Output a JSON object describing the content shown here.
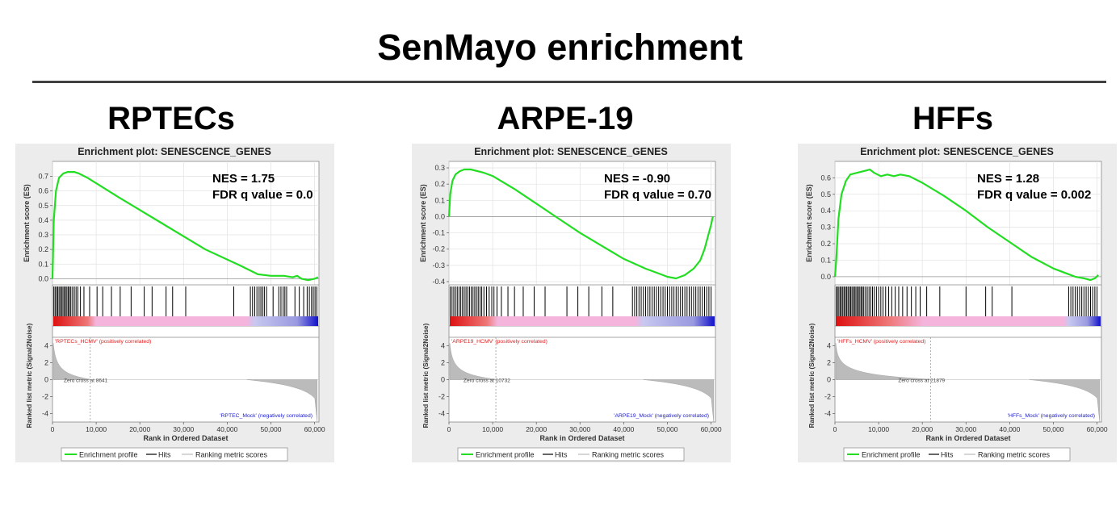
{
  "page": {
    "title": "SenMayo enrichment"
  },
  "chart_data": [
    {
      "type": "line",
      "cell_title": "RPTECs",
      "title": "Enrichment plot: SENESCENCE_GENES",
      "nes_label": "NES = 1.75",
      "fdr_label": "FDR q value = 0.0",
      "ylabel": "Enrichment score (ES)",
      "ylim": [
        -0.02,
        0.78
      ],
      "yticks": [
        0.0,
        0.1,
        0.2,
        0.3,
        0.4,
        0.5,
        0.6,
        0.7
      ],
      "ytick_labels": [
        "0.0",
        "0.1",
        "0.2",
        "0.3",
        "0.4",
        "0.5",
        "0.6",
        "0.7"
      ],
      "xlabel": "Rank in Ordered Dataset",
      "xlim": [
        0,
        61000
      ],
      "xticks": [
        0,
        10000,
        20000,
        30000,
        40000,
        50000,
        60000
      ],
      "xtick_labels": [
        "0",
        "10,000",
        "20,000",
        "30,000",
        "40,000",
        "50,000",
        "60,000"
      ],
      "series": [
        {
          "name": "Enrichment profile",
          "color": "#22dd22",
          "x": [
            0,
            300,
            800,
            1500,
            2500,
            3500,
            5000,
            6000,
            8000,
            15000,
            25000,
            35000,
            43000,
            47000,
            50000,
            53000,
            55000,
            56000,
            57000,
            58500,
            60000,
            60800
          ],
          "values": [
            0,
            0.4,
            0.6,
            0.69,
            0.72,
            0.73,
            0.73,
            0.72,
            0.69,
            0.56,
            0.38,
            0.2,
            0.09,
            0.03,
            0.02,
            0.02,
            0.01,
            0.02,
            0.0,
            -0.01,
            0.0,
            0.01
          ]
        }
      ],
      "hits": [
        300,
        600,
        900,
        1200,
        1500,
        1800,
        2100,
        2400,
        2700,
        3000,
        3300,
        3600,
        3900,
        4200,
        4600,
        5000,
        5400,
        5800,
        6400,
        7200,
        8500,
        10200,
        11500,
        13500,
        15500,
        18000,
        21000,
        22800,
        26000,
        27500,
        30500,
        41500,
        45300,
        45800,
        46300,
        46800,
        47300,
        47700,
        48100,
        48500,
        49000,
        50500,
        51800,
        52300,
        52800,
        53200,
        53600,
        55500,
        56500,
        57500,
        58300,
        58800,
        59300,
        59700,
        60100,
        60500
      ],
      "gradient": [
        {
          "offset": 0,
          "color": "#dd1111"
        },
        {
          "offset": 0.13,
          "color": "#ee7777"
        },
        {
          "offset": 0.16,
          "color": "#f4b4dc"
        },
        {
          "offset": 0.73,
          "color": "#f4b4dc"
        },
        {
          "offset": 0.76,
          "color": "#c8c8f0"
        },
        {
          "offset": 0.92,
          "color": "#9999e0"
        },
        {
          "offset": 1,
          "color": "#1111cc"
        }
      ],
      "pos_label": "'RPTECs_HCMV' (positively correlated)",
      "neg_label": "'RPTEC_Mock' (negatively correlated)",
      "zero_cross_label": "Zero cross at 8641",
      "zero_cross": 8641,
      "metric_ylabel": "Ranked list metric (Signal2Noise)",
      "metric_ylim": [
        -5,
        5
      ],
      "metric_yticks": [
        4,
        2,
        0,
        -2,
        -4
      ],
      "metric_ytick_labels": [
        "4",
        "2",
        "0",
        "-2",
        "-4"
      ],
      "legend": [
        "Enrichment profile",
        "Hits",
        "Ranking metric scores"
      ],
      "hits_color": "#000000",
      "metric_color": "#bbbbbb"
    },
    {
      "type": "line",
      "cell_title": "ARPE-19",
      "title": "Enrichment plot: SENESCENCE_GENES",
      "nes_label": "NES = -0.90",
      "fdr_label": "FDR q value = 0.70",
      "ylabel": "Enrichment score (ES)",
      "ylim": [
        -0.4,
        0.32
      ],
      "yticks": [
        0.3,
        0.2,
        0.1,
        0.0,
        -0.1,
        -0.2,
        -0.3,
        -0.4
      ],
      "ytick_labels": [
        "0.3",
        "0.2",
        "0.1",
        "0.0",
        "-0.1",
        "-0.2",
        "-0.3",
        "-0.4"
      ],
      "xlabel": "Rank in Ordered Dataset",
      "xlim": [
        0,
        61000
      ],
      "xticks": [
        0,
        10000,
        20000,
        30000,
        40000,
        50000,
        60000
      ],
      "xtick_labels": [
        "0",
        "10,000",
        "20,000",
        "30,000",
        "40,000",
        "50,000",
        "60,000"
      ],
      "series": [
        {
          "name": "Enrichment profile",
          "color": "#22dd22",
          "x": [
            0,
            300,
            800,
            1500,
            2500,
            3500,
            5000,
            8000,
            10000,
            15000,
            20000,
            25000,
            30000,
            35000,
            40000,
            45000,
            48000,
            50000,
            52000,
            54000,
            56000,
            57500,
            58500,
            59300,
            60000,
            60400
          ],
          "values": [
            0,
            0.14,
            0.22,
            0.26,
            0.28,
            0.29,
            0.29,
            0.27,
            0.25,
            0.17,
            0.08,
            -0.01,
            -0.1,
            -0.18,
            -0.26,
            -0.32,
            -0.35,
            -0.37,
            -0.38,
            -0.36,
            -0.32,
            -0.27,
            -0.2,
            -0.12,
            -0.05,
            0.0
          ]
        }
      ],
      "hits": [
        300,
        700,
        1100,
        1500,
        1900,
        2300,
        2700,
        3100,
        3500,
        3900,
        4300,
        4700,
        5100,
        5500,
        5900,
        6300,
        6700,
        7100,
        7500,
        8000,
        8600,
        9200,
        9800,
        10300,
        11000,
        12000,
        13500,
        15000,
        17000,
        19500,
        22000,
        27000,
        29500,
        32000,
        35000,
        37500,
        42000,
        42500,
        43000,
        43500,
        44000,
        44500,
        45000,
        45500,
        46000,
        46500,
        47000,
        47500,
        48000,
        48500,
        49000,
        49500,
        50000,
        50500,
        51000,
        51500,
        52000,
        52500,
        53000,
        53500,
        54000,
        54500,
        55000,
        55500,
        56000,
        56500,
        57000,
        57500,
        58000,
        58500,
        59000,
        59500,
        60000
      ],
      "gradient": [
        {
          "offset": 0,
          "color": "#dd1111"
        },
        {
          "offset": 0.14,
          "color": "#ee7777"
        },
        {
          "offset": 0.18,
          "color": "#f4b4dc"
        },
        {
          "offset": 0.7,
          "color": "#f4b4dc"
        },
        {
          "offset": 0.73,
          "color": "#c8c8f0"
        },
        {
          "offset": 0.92,
          "color": "#9999e0"
        },
        {
          "offset": 1,
          "color": "#1111cc"
        }
      ],
      "pos_label": "'ARPE19_HCMV' (positively correlated)",
      "neg_label": "'ARPE19_Mock' (negatively correlated)",
      "zero_cross_label": "Zero cross at 10732",
      "zero_cross": 10732,
      "metric_ylabel": "Ranked list metric (Signal2Noise)",
      "metric_ylim": [
        -5,
        5
      ],
      "metric_yticks": [
        4,
        2,
        0,
        -2,
        -4
      ],
      "metric_ytick_labels": [
        "4",
        "2",
        "0",
        "-2",
        "-4"
      ],
      "legend": [
        "Enrichment profile",
        "Hits",
        "Ranking metric scores"
      ],
      "hits_color": "#000000",
      "metric_color": "#bbbbbb"
    },
    {
      "type": "line",
      "cell_title": "HFFs",
      "title": "Enrichment plot: SENESCENCE_GENES",
      "nes_label": "NES = 1.28",
      "fdr_label": "FDR q value = 0.002",
      "ylabel": "Enrichment score (ES)",
      "ylim": [
        -0.03,
        0.68
      ],
      "yticks": [
        0.0,
        0.1,
        0.2,
        0.3,
        0.4,
        0.5,
        0.6
      ],
      "ytick_labels": [
        "0.0",
        "0.1",
        "0.2",
        "0.3",
        "0.4",
        "0.5",
        "0.6"
      ],
      "xlabel": "Rank in Ordered Dataset",
      "xlim": [
        0,
        61000
      ],
      "xticks": [
        0,
        10000,
        20000,
        30000,
        40000,
        50000,
        60000
      ],
      "xtick_labels": [
        "0",
        "10,000",
        "20,000",
        "30,000",
        "40,000",
        "50,000",
        "60,000"
      ],
      "series": [
        {
          "name": "Enrichment profile",
          "color": "#22dd22",
          "x": [
            0,
            300,
            800,
            1500,
            2500,
            3500,
            5000,
            6500,
            8000,
            9000,
            10500,
            12000,
            13500,
            15000,
            17000,
            20000,
            25000,
            30000,
            35000,
            40000,
            45000,
            50000,
            53000,
            55000,
            57000,
            58500,
            59500,
            60300
          ],
          "values": [
            0.0,
            0.1,
            0.35,
            0.5,
            0.58,
            0.62,
            0.63,
            0.64,
            0.65,
            0.63,
            0.61,
            0.62,
            0.61,
            0.62,
            0.61,
            0.57,
            0.49,
            0.4,
            0.3,
            0.21,
            0.12,
            0.05,
            0.02,
            0.0,
            -0.01,
            -0.02,
            -0.01,
            0.01
          ]
        }
      ],
      "hits": [
        300,
        600,
        900,
        1200,
        1500,
        1800,
        2100,
        2400,
        2700,
        3000,
        3300,
        3600,
        3900,
        4200,
        4500,
        4800,
        5100,
        5400,
        5700,
        6000,
        6300,
        6600,
        7000,
        7400,
        7800,
        8200,
        8600,
        9000,
        9500,
        10000,
        10500,
        11000,
        11600,
        12300,
        13000,
        13800,
        14600,
        15500,
        16500,
        17500,
        18500,
        19500,
        21000,
        24000,
        30000,
        34500,
        36000,
        40500,
        53500,
        54000,
        54500,
        55000,
        55500,
        56000,
        56500,
        57000,
        57500,
        58000,
        58500,
        59000,
        59500,
        60000
      ],
      "gradient": [
        {
          "offset": 0,
          "color": "#dd1111"
        },
        {
          "offset": 0.2,
          "color": "#ee7777"
        },
        {
          "offset": 0.33,
          "color": "#f4b4dc"
        },
        {
          "offset": 0.86,
          "color": "#f4b4dc"
        },
        {
          "offset": 0.88,
          "color": "#c8c8f0"
        },
        {
          "offset": 0.95,
          "color": "#9999e0"
        },
        {
          "offset": 1,
          "color": "#1111cc"
        }
      ],
      "pos_label": "'HFFs_HCMV' (positively correlated)",
      "neg_label": "'HFFs_Mock' (negatively correlated)",
      "zero_cross_label": "Zero cross at 21879",
      "zero_cross": 21879,
      "metric_ylabel": "Ranked list metric (Signal2Noise)",
      "metric_ylim": [
        -5,
        5
      ],
      "metric_yticks": [
        4,
        2,
        0,
        -2,
        -4
      ],
      "metric_ytick_labels": [
        "4",
        "2",
        "0",
        "-2",
        "-4"
      ],
      "legend": [
        "Enrichment profile",
        "Hits",
        "Ranking metric scores"
      ],
      "hits_color": "#000000",
      "metric_color": "#bbbbbb"
    }
  ]
}
